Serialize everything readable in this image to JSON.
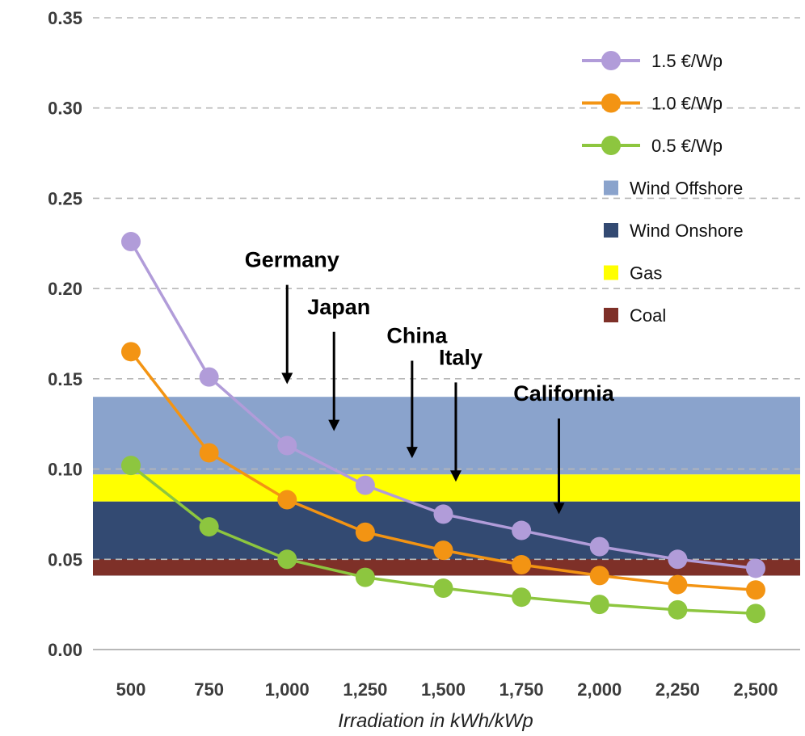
{
  "chart_data": {
    "type": "line",
    "title": "",
    "xlabel": "Irradiation in kWh/kWp",
    "ylabel": "",
    "ylim": [
      0,
      0.35
    ],
    "grid": true,
    "legend_position": "top-right",
    "x": [
      500,
      750,
      1000,
      1250,
      1500,
      1750,
      2000,
      2250,
      2500
    ],
    "x_tick_labels": [
      "500",
      "750",
      "1,000",
      "1,250",
      "1,500",
      "1,750",
      "2,000",
      "2,250",
      "2,500"
    ],
    "y_ticks": [
      0,
      0.05,
      0.1,
      0.15,
      0.2,
      0.25,
      0.3,
      0.35
    ],
    "y_tick_labels": [
      "0.00",
      "0.05",
      "0.10",
      "0.15",
      "0.20",
      "0.25",
      "0.30",
      "0.35"
    ],
    "series": [
      {
        "name": "1.5 €/Wp",
        "color": "#b19cd9",
        "values": [
          0.226,
          0.151,
          0.113,
          0.091,
          0.075,
          0.066,
          0.057,
          0.05,
          0.045
        ]
      },
      {
        "name": "1.0 €/Wp",
        "color": "#f39413",
        "values": [
          0.165,
          0.109,
          0.083,
          0.065,
          0.055,
          0.047,
          0.041,
          0.036,
          0.033
        ]
      },
      {
        "name": "0.5 €/Wp",
        "color": "#8dc63f",
        "values": [
          0.102,
          0.068,
          0.05,
          0.04,
          0.034,
          0.029,
          0.025,
          0.022,
          0.02
        ]
      }
    ],
    "bands": [
      {
        "name": "Wind Offshore",
        "color": "#8aa3cc",
        "from": 0.097,
        "to": 0.14
      },
      {
        "name": "Wind Onshore",
        "color": "#334a72",
        "from": 0.041,
        "to": 0.082
      },
      {
        "name": "Gas",
        "color": "#ffff00",
        "from": 0.082,
        "to": 0.097
      },
      {
        "name": "Coal",
        "color": "#7e3028",
        "from": 0.041,
        "to": 0.05
      }
    ],
    "annotations": [
      {
        "label": "Germany",
        "x": 1000,
        "y_from": 0.202,
        "y_to": 0.147
      },
      {
        "label": "Japan",
        "x": 1150,
        "y_from": 0.176,
        "y_to": 0.121
      },
      {
        "label": "China",
        "x": 1400,
        "y_from": 0.16,
        "y_to": 0.106
      },
      {
        "label": "Italy",
        "x": 1540,
        "y_from": 0.148,
        "y_to": 0.093
      },
      {
        "label": "California",
        "x": 1870,
        "y_from": 0.128,
        "y_to": 0.075
      }
    ]
  }
}
